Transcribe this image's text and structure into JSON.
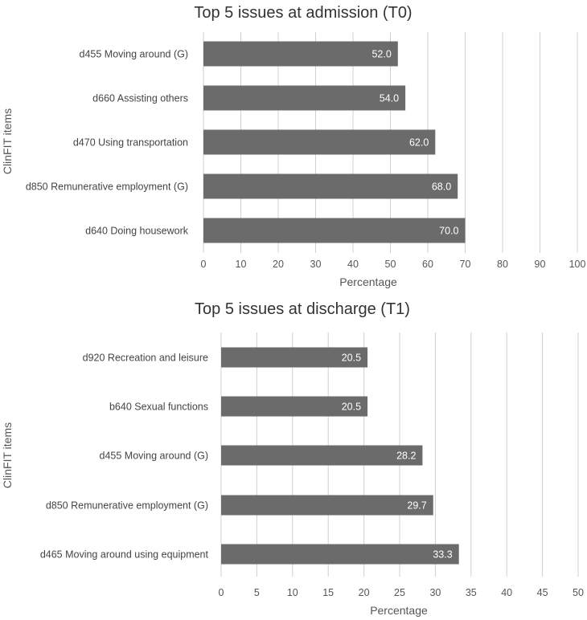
{
  "chart_data": [
    {
      "type": "bar",
      "orientation": "horizontal",
      "title": "Top 5 issues at admission  (T0)",
      "xlabel": "Percentage",
      "ylabel": "ClinFIT items",
      "categories": [
        "d455 Moving around (G)",
        "d660 Assisting others",
        "d470 Using transportation",
        "d850 Remunerative employment (G)",
        "d640 Doing housework"
      ],
      "values": [
        52.0,
        54.0,
        62.0,
        68.0,
        70.0
      ],
      "value_labels": [
        "52.0",
        "54.0",
        "62.0",
        "68.0",
        "70.0"
      ],
      "xlim": [
        0,
        100
      ],
      "xticks": [
        "0",
        "10",
        "20",
        "30",
        "40",
        "50",
        "60",
        "70",
        "80",
        "90",
        "100"
      ],
      "grid": "vertical",
      "bar_color": "#6b6b6b",
      "label_color": "#ffffff"
    },
    {
      "type": "bar",
      "orientation": "horizontal",
      "title": "Top 5 issues at  discharge (T1)",
      "xlabel": "Percentage",
      "ylabel": "ClinFIT items",
      "categories": [
        "d920 Recreation and leisure",
        "b640 Sexual functions",
        "d455 Moving around (G)",
        "d850 Remunerative employment (G)",
        "d465 Moving around using equipment"
      ],
      "values": [
        20.5,
        20.5,
        28.2,
        29.7,
        33.3
      ],
      "value_labels": [
        "20.5",
        "20.5",
        "28.2",
        "29.7",
        "33.3"
      ],
      "xlim": [
        0,
        50
      ],
      "xticks": [
        "0",
        "5",
        "10",
        "15",
        "20",
        "25",
        "30",
        "35",
        "40",
        "45",
        "50"
      ],
      "grid": "vertical",
      "bar_color": "#6b6b6b",
      "label_color": "#ffffff"
    }
  ]
}
